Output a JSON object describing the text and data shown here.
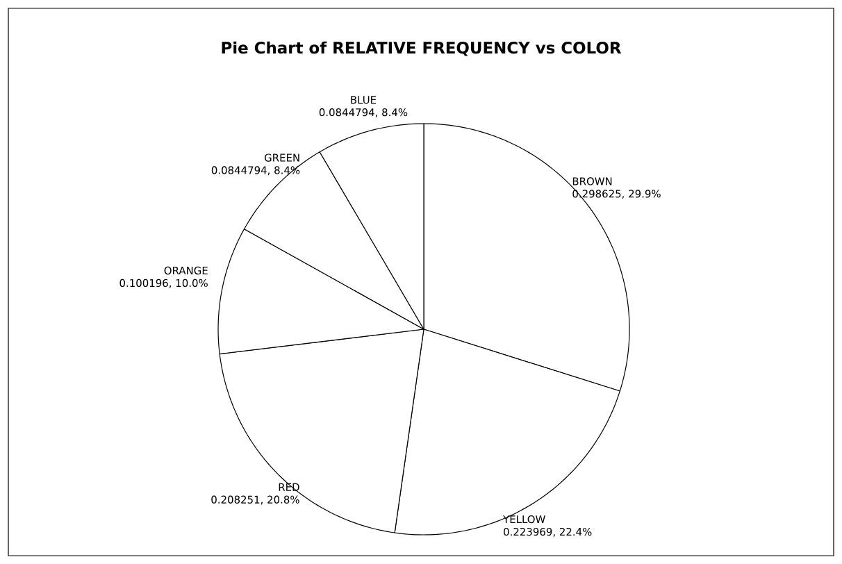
{
  "chart_data": {
    "type": "pie",
    "title": "Pie Chart of RELATIVE FREQUENCY vs COLOR",
    "categories": [
      "BROWN",
      "YELLOW",
      "RED",
      "ORANGE",
      "GREEN",
      "BLUE"
    ],
    "values": [
      0.298625,
      0.223969,
      0.208251,
      0.100196,
      0.0844794,
      0.0844794
    ],
    "value_labels": [
      "0.298625, 29.9%",
      "0.223969, 22.4%",
      "0.208251, 20.8%",
      "0.100196, 10.0%",
      "0.0844794, 8.4%",
      "0.0844794, 8.4%"
    ],
    "colors": [
      "#ffffff",
      "#ffffff",
      "#ffffff",
      "#ffffff",
      "#ffffff",
      "#ffffff"
    ]
  }
}
